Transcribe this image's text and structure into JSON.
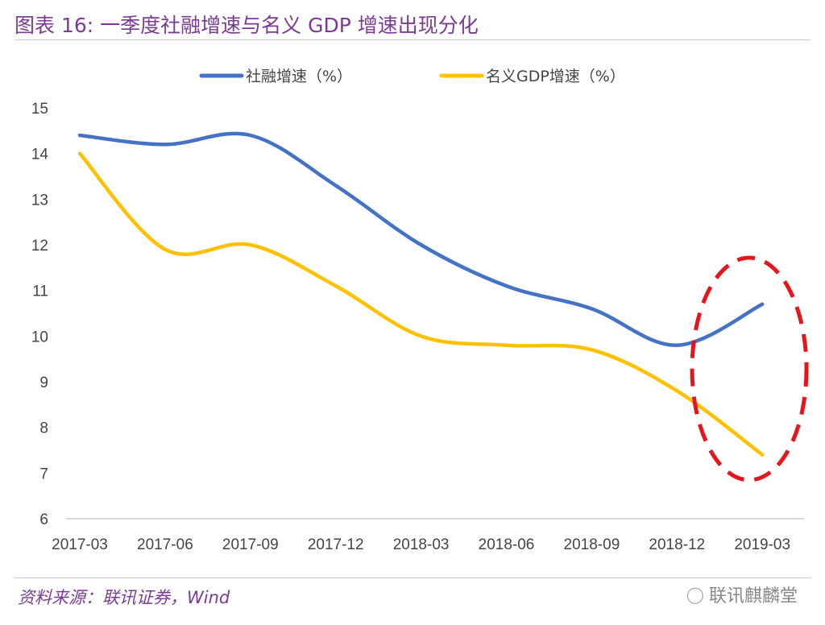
{
  "header": {
    "title": "图表 16:  一季度社融增速与名义 GDP 增速出现分化"
  },
  "footer": {
    "source": "资料来源：联讯证券，Wind",
    "watermark": "联讯麒麟堂",
    "watermark_icon": "wechat-icon"
  },
  "chart_data": {
    "type": "line",
    "title": "",
    "xlabel": "",
    "ylabel": "",
    "categories": [
      "2017-03",
      "2017-06",
      "2017-09",
      "2017-12",
      "2018-03",
      "2018-06",
      "2018-09",
      "2018-12",
      "2019-03"
    ],
    "ylim": [
      6,
      15
    ],
    "yticks": [
      "6",
      "7",
      "8",
      "9",
      "10",
      "11",
      "12",
      "13",
      "14",
      "15"
    ],
    "grid": false,
    "legend_position": "top",
    "smooth": true,
    "series": [
      {
        "name": "社融增速（%）",
        "color": "#4472c4",
        "values": [
          14.4,
          14.2,
          14.4,
          13.3,
          12.0,
          11.1,
          10.6,
          9.8,
          10.7
        ]
      },
      {
        "name": "名义GDP增速（%）",
        "color": "#ffc000",
        "values": [
          14.0,
          11.9,
          12.0,
          11.1,
          10.0,
          9.8,
          9.7,
          8.8,
          7.4
        ]
      }
    ],
    "annotation": {
      "shape": "dashed-ellipse",
      "color": "#e8141b",
      "target": "2018-12 to 2019-03"
    }
  }
}
